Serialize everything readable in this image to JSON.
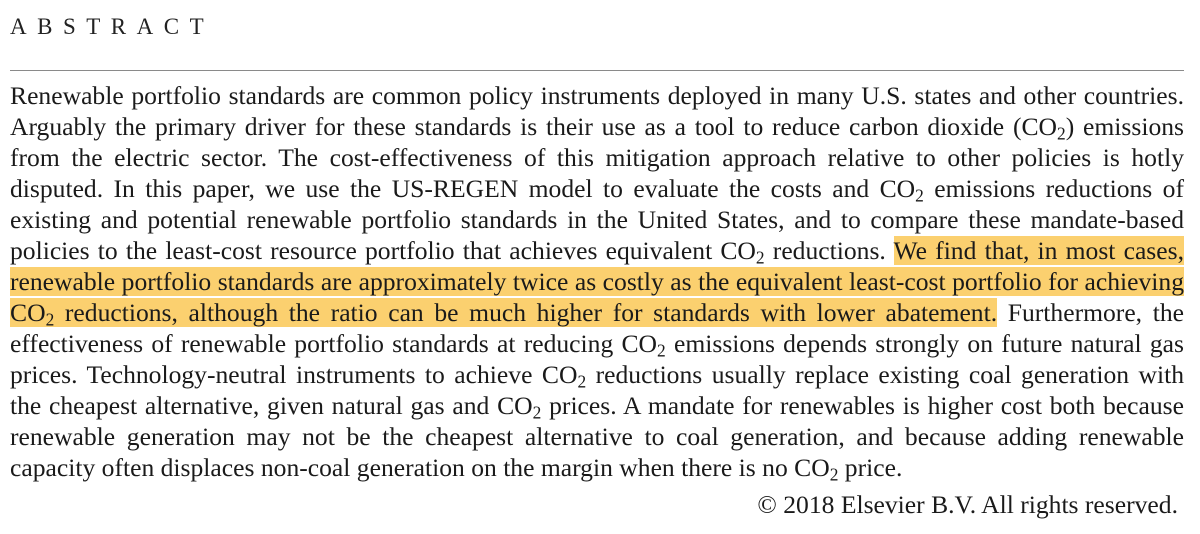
{
  "section": {
    "heading": "ABSTRACT"
  },
  "abstract": {
    "s1": "Renewable portfolio standards are common policy instruments deployed in many U.S. states and other countries. Arguably the primary driver for these standards is their use as a tool to reduce carbon dioxide (CO",
    "s2": ") emissions from the electric sector. The cost-effectiveness of this mitigation approach relative to other policies is hotly disputed. In this paper, we use the US-REGEN model to evaluate the costs and CO",
    "s3": " emissions reductions of existing and potential renewable portfolio standards in the United States, and to compare these mandate-based policies to the least-cost resource portfolio that achieves equivalent CO",
    "s4": " reductions. ",
    "h1": "We find that, in most cases, renewable portfolio standards are approximately twice as costly as the equivalent least-cost portfolio for achieving CO",
    "h2": " reduc­tions, although the ratio can be much higher for standards with lower abatement.",
    "s5": " Furthermore, the effectiveness of renewable portfolio standards at reducing CO",
    "s6": " emissions depends strongly on future natural gas prices. Technology-neutral instruments to achieve CO",
    "s7": " reductions usually replace existing coal generation with the cheapest alternative, given natural gas and CO",
    "s8": " prices. A mandate for renewables is higher cost both because renewable generation may not be the cheapest alternative to coal generation, and because adding renewable capacity often displaces non-coal generation on the margin when there is no CO",
    "s9": " price.",
    "subscript": "2"
  },
  "footer": {
    "copyright": "© 2018 Elsevier B.V. All rights reserved."
  },
  "colors": {
    "highlight": "#fbd06f",
    "rule": "#8a8a8a",
    "text": "#1a1a1a"
  }
}
